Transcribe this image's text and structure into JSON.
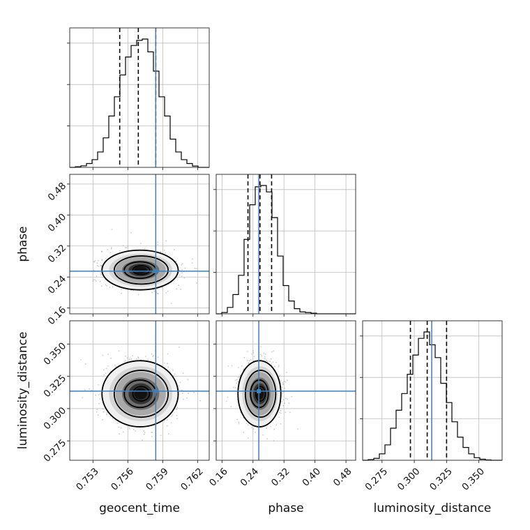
{
  "chart_data": {
    "type": "corner",
    "parameters": [
      {
        "name": "geocent_time",
        "ticks": [
          "0.753",
          "0.756",
          "0.759",
          "0.762"
        ],
        "tick_values": [
          0.753,
          0.756,
          0.759,
          0.762
        ],
        "range": [
          0.751,
          0.763
        ]
      },
      {
        "name": "phase",
        "ticks": [
          "0.16",
          "0.24",
          "0.32",
          "0.40",
          "0.48"
        ],
        "tick_values": [
          0.16,
          0.24,
          0.32,
          0.4,
          0.48
        ],
        "range": [
          0.145,
          0.505
        ]
      },
      {
        "name": "luminosity_distance",
        "ticks": [
          "0.275",
          "0.300",
          "0.325",
          "0.350"
        ],
        "tick_values": [
          0.275,
          0.3,
          0.325,
          0.35
        ],
        "range": [
          0.26,
          0.368
        ]
      }
    ],
    "truths": [
      0.7584,
      0.255,
      0.3135
    ],
    "quantiles": [
      [
        0.7553,
        0.7569,
        0.7584
      ],
      [
        0.227,
        0.258,
        0.288
      ],
      [
        0.297,
        0.31,
        0.325
      ]
    ],
    "hist_bins": [
      [
        0.751,
        0.763
      ],
      [
        0.145,
        0.505
      ],
      [
        0.26,
        0.368
      ]
    ],
    "histograms": [
      [
        0.0,
        0.005,
        0.012,
        0.03,
        0.06,
        0.12,
        0.23,
        0.4,
        0.55,
        0.72,
        0.86,
        0.95,
        0.99,
        1.0,
        0.9,
        0.75,
        0.55,
        0.4,
        0.22,
        0.12,
        0.06,
        0.03,
        0.01,
        0.0,
        0.0
      ],
      [
        0.0,
        0.01,
        0.05,
        0.15,
        0.3,
        0.58,
        0.85,
        0.99,
        1.0,
        0.95,
        0.75,
        0.45,
        0.22,
        0.1,
        0.04,
        0.015,
        0.01,
        0.005,
        0.0,
        0.0,
        0.0,
        0.0,
        0.0,
        0.0,
        0.0
      ],
      [
        0.0,
        0.005,
        0.015,
        0.05,
        0.12,
        0.25,
        0.39,
        0.52,
        0.67,
        0.82,
        0.95,
        1.0,
        0.9,
        0.8,
        0.6,
        0.45,
        0.3,
        0.18,
        0.1,
        0.05,
        0.02,
        0.008,
        0.003,
        0.0,
        0.0
      ]
    ],
    "density_2d": [
      {
        "x_index": 0,
        "y_index": 1,
        "center": [
          0.7571,
          0.258
        ],
        "spread": [
          0.0016,
          0.025
        ]
      },
      {
        "x_index": 0,
        "y_index": 2,
        "center": [
          0.7571,
          0.3115
        ],
        "spread": [
          0.0016,
          0.0125
        ]
      },
      {
        "x_index": 1,
        "y_index": 2,
        "center": [
          0.258,
          0.3115
        ],
        "spread": [
          0.027,
          0.0125
        ]
      }
    ]
  },
  "colors": {
    "truth": "#3f7fb8",
    "hist": "#000000",
    "grid": "#bdbdbd",
    "scatter": "#8a8a8a"
  }
}
